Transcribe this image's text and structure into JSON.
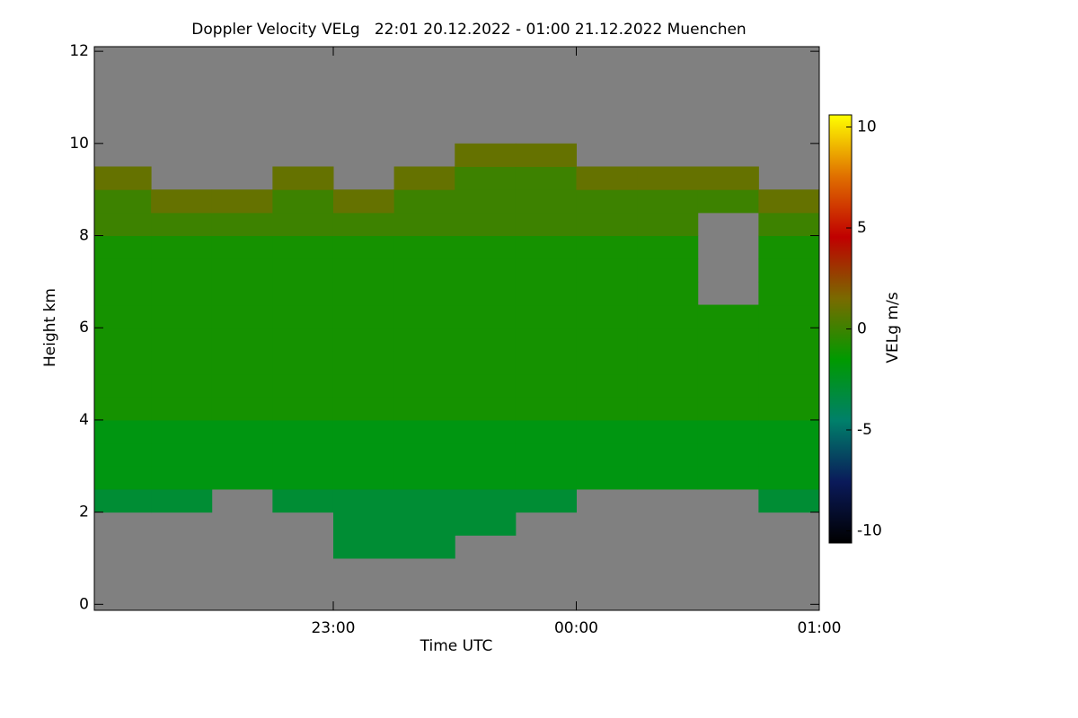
{
  "chart_data": {
    "type": "heatmap",
    "title": "Doppler Velocity VELg   22:01 20.12.2022 - 01:00 21.12.2022 Muenchen",
    "x_label": "Time UTC",
    "y_label": "Height km",
    "colorbar_label": "VELg m/s",
    "xlim": [
      22.0167,
      25.0
    ],
    "xticks": [
      {
        "value": 23,
        "label": "23:00"
      },
      {
        "value": 24,
        "label": "00:00"
      },
      {
        "value": 25,
        "label": "01:00"
      }
    ],
    "ylim": [
      -0.13,
      12.1
    ],
    "yticks": [
      0,
      2,
      4,
      6,
      8,
      10,
      12
    ],
    "zlim": [
      -10.6,
      10.6
    ],
    "zticks": [
      -10,
      -5,
      0,
      5,
      10
    ],
    "colormap": [
      "#000000",
      "#0a1a5a",
      "#00806a",
      "#009a00",
      "#7a6a00",
      "#c00000",
      "#e07000",
      "#ffff00"
    ],
    "background": "#808080",
    "xbins": [
      22.0167,
      22.25,
      22.5,
      22.75,
      23.0,
      23.25,
      23.5,
      23.75,
      24.0,
      24.25,
      24.5,
      24.75,
      25.0
    ],
    "ybins": [
      0,
      0.5,
      1,
      1.5,
      2,
      2.5,
      3,
      3.5,
      4,
      4.5,
      5,
      5.5,
      6,
      6.5,
      7,
      7.5,
      8,
      8.5,
      9,
      9.5,
      10,
      10.5,
      11,
      11.5,
      12
    ],
    "z": [
      [
        null,
        null,
        null,
        null,
        null,
        null,
        null,
        null,
        null,
        null,
        null,
        null
      ],
      [
        null,
        null,
        null,
        null,
        null,
        null,
        null,
        null,
        null,
        null,
        null,
        null
      ],
      [
        null,
        null,
        null,
        null,
        -3,
        -3,
        null,
        null,
        null,
        null,
        null,
        null
      ],
      [
        null,
        null,
        null,
        null,
        -3,
        -3,
        -3,
        null,
        null,
        null,
        null,
        null
      ],
      [
        -3,
        -3,
        null,
        -3,
        -3,
        -3,
        -3,
        -3,
        null,
        null,
        null,
        -3
      ],
      [
        -2,
        -2,
        -2,
        -2,
        -2,
        -2,
        -2,
        -2,
        -2,
        -2,
        -2,
        -2
      ],
      [
        -2,
        -2,
        -2,
        -2,
        -2,
        -2,
        -2,
        -2,
        -2,
        -2,
        -2,
        -2
      ],
      [
        -2,
        -2,
        -2,
        -2,
        -2,
        -2,
        -2,
        -2,
        -2,
        -2,
        -2,
        -2
      ],
      [
        -1,
        -1,
        -1,
        -1,
        -1,
        -1,
        -1,
        -1,
        -1,
        -1,
        -1,
        -1
      ],
      [
        -1,
        -1,
        -1,
        -1,
        -1,
        -1,
        -1,
        -1,
        -1,
        -1,
        -1,
        -1
      ],
      [
        -1,
        -1,
        -1,
        -1,
        -1,
        -1,
        -1,
        -1,
        -1,
        -1,
        -1,
        -1
      ],
      [
        -1,
        -1,
        -1,
        -1,
        -1,
        -1,
        -1,
        -1,
        -1,
        -1,
        -1,
        -1
      ],
      [
        -1,
        -1,
        -1,
        -1,
        -1,
        -1,
        -1,
        -1,
        -1,
        -1,
        -1,
        -1
      ],
      [
        -1,
        -1,
        -1,
        -1,
        -1,
        -1,
        -1,
        -1,
        -1,
        -1,
        null,
        -1
      ],
      [
        -1,
        -1,
        -1,
        -1,
        -1,
        -1,
        -1,
        -1,
        -1,
        -1,
        null,
        -1
      ],
      [
        -1,
        -1,
        -1,
        -1,
        -1,
        -1,
        -1,
        -1,
        -1,
        -1,
        null,
        -1
      ],
      [
        0,
        0,
        0,
        0,
        0,
        0,
        0,
        0,
        0,
        0,
        null,
        0
      ],
      [
        0,
        1,
        1,
        0,
        1,
        0,
        0,
        0,
        0,
        0,
        0,
        1
      ],
      [
        1,
        null,
        null,
        1,
        null,
        1,
        0,
        0,
        1,
        1,
        1,
        null
      ],
      [
        null,
        null,
        null,
        null,
        null,
        null,
        1,
        1,
        null,
        null,
        null,
        null
      ],
      [
        null,
        null,
        null,
        null,
        null,
        null,
        null,
        null,
        null,
        null,
        null,
        null
      ],
      [
        null,
        null,
        null,
        null,
        null,
        null,
        null,
        null,
        null,
        null,
        null,
        null
      ],
      [
        null,
        null,
        null,
        null,
        null,
        null,
        null,
        null,
        null,
        null,
        null,
        null
      ],
      [
        null,
        null,
        null,
        null,
        null,
        null,
        null,
        null,
        null,
        null,
        null,
        null
      ]
    ]
  }
}
